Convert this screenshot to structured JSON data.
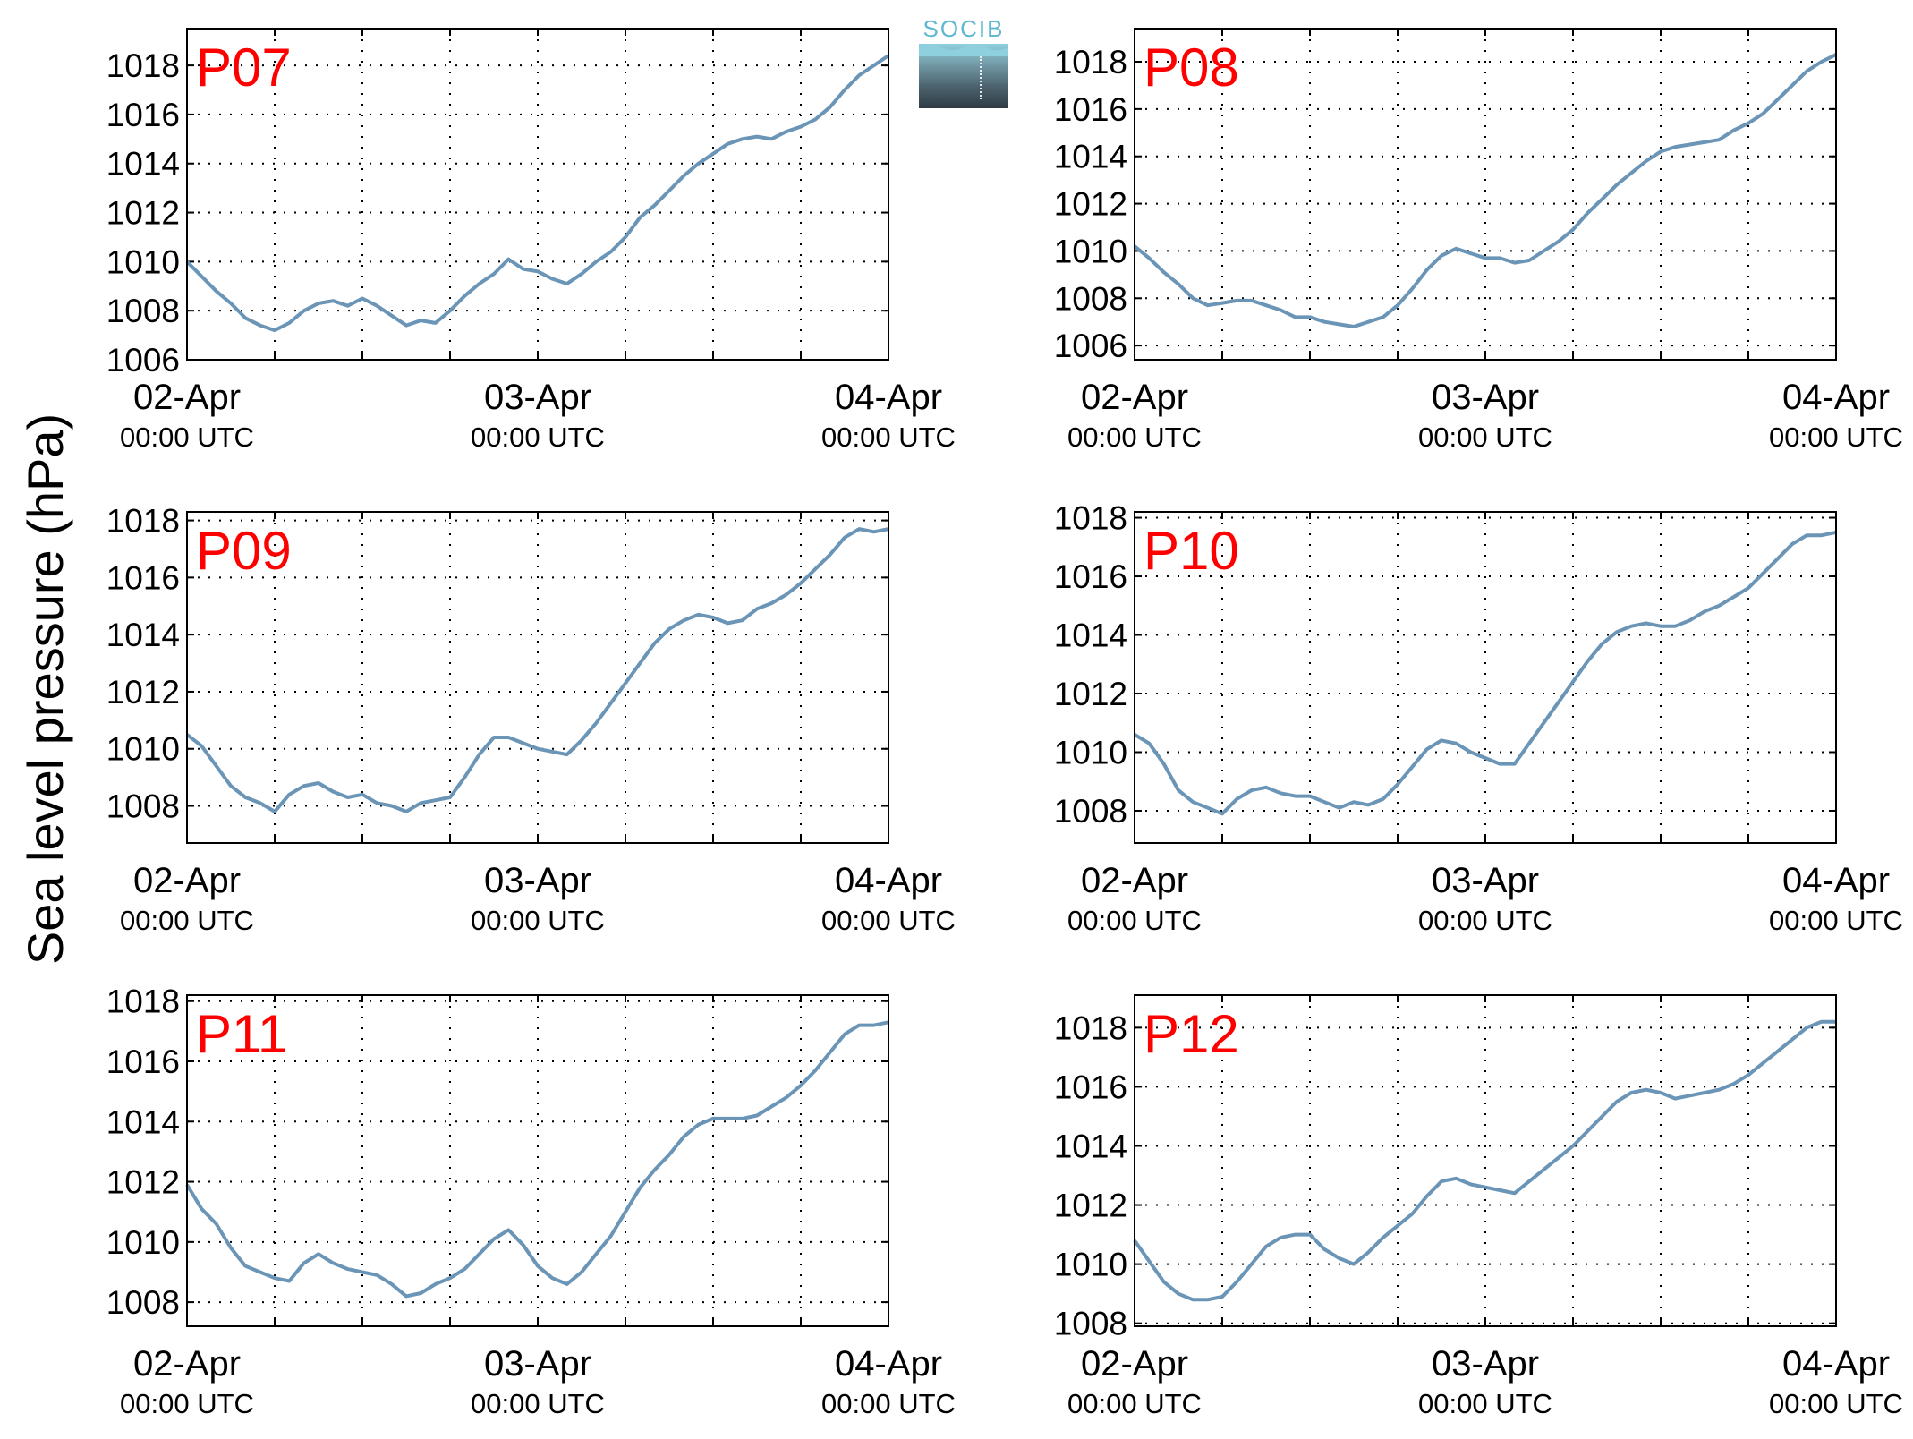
{
  "figure": {
    "ylabel": "Sea level pressure (hPa)",
    "logo_text": "SOCIB"
  },
  "style": {
    "line_color": "#6b95b7",
    "station_label_color": "#ff0000",
    "axis_color": "#000000",
    "grid": "dotted"
  },
  "chart_data": [
    {
      "type": "line",
      "title": "P07",
      "x_ticks": [
        "02-Apr",
        "03-Apr",
        "04-Apr"
      ],
      "x_subticks": [
        "00:00 UTC",
        "00:00 UTC",
        "00:00 UTC"
      ],
      "x_range_hours": [
        0,
        48
      ],
      "ylim": [
        1006,
        1019.5
      ],
      "y_ticks": [
        1006,
        1008,
        1010,
        1012,
        1014,
        1016,
        1018
      ],
      "grid": true,
      "series": [
        {
          "x": [
            0,
            1,
            2,
            3,
            4,
            5,
            6,
            7,
            8,
            9,
            10,
            11,
            12,
            13,
            14,
            15,
            16,
            17,
            18,
            19,
            20,
            21,
            22,
            23,
            24,
            25,
            26,
            27,
            28,
            29,
            30,
            31,
            32,
            33,
            34,
            35,
            36,
            37,
            38,
            39,
            40,
            41,
            42,
            43,
            44,
            45,
            46,
            47,
            48
          ],
          "y": [
            1010.0,
            1009.4,
            1008.8,
            1008.3,
            1007.7,
            1007.4,
            1007.2,
            1007.5,
            1008.0,
            1008.3,
            1008.4,
            1008.2,
            1008.5,
            1008.2,
            1007.8,
            1007.4,
            1007.6,
            1007.5,
            1008.0,
            1008.6,
            1009.1,
            1009.5,
            1010.1,
            1009.7,
            1009.6,
            1009.3,
            1009.1,
            1009.5,
            1010.0,
            1010.4,
            1011.0,
            1011.8,
            1012.3,
            1012.9,
            1013.5,
            1014.0,
            1014.4,
            1014.8,
            1015.0,
            1015.1,
            1015.0,
            1015.3,
            1015.5,
            1015.8,
            1016.3,
            1017.0,
            1017.6,
            1018.0,
            1018.4
          ]
        }
      ]
    },
    {
      "type": "line",
      "title": "P08",
      "x_ticks": [
        "02-Apr",
        "03-Apr",
        "04-Apr"
      ],
      "x_subticks": [
        "00:00 UTC",
        "00:00 UTC",
        "00:00 UTC"
      ],
      "x_range_hours": [
        0,
        48
      ],
      "ylim": [
        1005.4,
        1019.4
      ],
      "y_ticks": [
        1006,
        1008,
        1010,
        1012,
        1014,
        1016,
        1018
      ],
      "grid": true,
      "series": [
        {
          "x": [
            0,
            1,
            2,
            3,
            4,
            5,
            6,
            7,
            8,
            9,
            10,
            11,
            12,
            13,
            14,
            15,
            16,
            17,
            18,
            19,
            20,
            21,
            22,
            23,
            24,
            25,
            26,
            27,
            28,
            29,
            30,
            31,
            32,
            33,
            34,
            35,
            36,
            37,
            38,
            39,
            40,
            41,
            42,
            43,
            44,
            45,
            46,
            47,
            48
          ],
          "y": [
            1010.2,
            1009.7,
            1009.1,
            1008.6,
            1008.0,
            1007.7,
            1007.8,
            1007.9,
            1007.9,
            1007.7,
            1007.5,
            1007.2,
            1007.2,
            1007.0,
            1006.9,
            1006.8,
            1007.0,
            1007.2,
            1007.7,
            1008.4,
            1009.2,
            1009.8,
            1010.1,
            1009.9,
            1009.7,
            1009.7,
            1009.5,
            1009.6,
            1010.0,
            1010.4,
            1010.9,
            1011.6,
            1012.2,
            1012.8,
            1013.3,
            1013.8,
            1014.2,
            1014.4,
            1014.5,
            1014.6,
            1014.7,
            1015.1,
            1015.4,
            1015.8,
            1016.4,
            1017.0,
            1017.6,
            1018.0,
            1018.3
          ]
        }
      ]
    },
    {
      "type": "line",
      "title": "P09",
      "x_ticks": [
        "02-Apr",
        "03-Apr",
        "04-Apr"
      ],
      "x_subticks": [
        "00:00 UTC",
        "00:00 UTC",
        "00:00 UTC"
      ],
      "x_range_hours": [
        0,
        48
      ],
      "ylim": [
        1006.7,
        1018.3
      ],
      "y_ticks": [
        1008,
        1010,
        1012,
        1014,
        1016,
        1018
      ],
      "grid": true,
      "series": [
        {
          "x": [
            0,
            1,
            2,
            3,
            4,
            5,
            6,
            7,
            8,
            9,
            10,
            11,
            12,
            13,
            14,
            15,
            16,
            17,
            18,
            19,
            20,
            21,
            22,
            23,
            24,
            25,
            26,
            27,
            28,
            29,
            30,
            31,
            32,
            33,
            34,
            35,
            36,
            37,
            38,
            39,
            40,
            41,
            42,
            43,
            44,
            45,
            46,
            47,
            48
          ],
          "y": [
            1010.5,
            1010.1,
            1009.4,
            1008.7,
            1008.3,
            1008.1,
            1007.8,
            1008.4,
            1008.7,
            1008.8,
            1008.5,
            1008.3,
            1008.4,
            1008.1,
            1008.0,
            1007.8,
            1008.1,
            1008.2,
            1008.3,
            1009.0,
            1009.8,
            1010.4,
            1010.4,
            1010.2,
            1010.0,
            1009.9,
            1009.8,
            1010.3,
            1010.9,
            1011.6,
            1012.3,
            1013.0,
            1013.7,
            1014.2,
            1014.5,
            1014.7,
            1014.6,
            1014.4,
            1014.5,
            1014.9,
            1015.1,
            1015.4,
            1015.8,
            1016.3,
            1016.8,
            1017.4,
            1017.7,
            1017.6,
            1017.7
          ]
        }
      ]
    },
    {
      "type": "line",
      "title": "P10",
      "x_ticks": [
        "02-Apr",
        "03-Apr",
        "04-Apr"
      ],
      "x_subticks": [
        "00:00 UTC",
        "00:00 UTC",
        "00:00 UTC"
      ],
      "x_range_hours": [
        0,
        48
      ],
      "ylim": [
        1006.9,
        1018.2
      ],
      "y_ticks": [
        1008,
        1010,
        1012,
        1014,
        1016,
        1018
      ],
      "grid": true,
      "series": [
        {
          "x": [
            0,
            1,
            2,
            3,
            4,
            5,
            6,
            7,
            8,
            9,
            10,
            11,
            12,
            13,
            14,
            15,
            16,
            17,
            18,
            19,
            20,
            21,
            22,
            23,
            24,
            25,
            26,
            27,
            28,
            29,
            30,
            31,
            32,
            33,
            34,
            35,
            36,
            37,
            38,
            39,
            40,
            41,
            42,
            43,
            44,
            45,
            46,
            47,
            48
          ],
          "y": [
            1010.6,
            1010.3,
            1009.6,
            1008.7,
            1008.3,
            1008.1,
            1007.9,
            1008.4,
            1008.7,
            1008.8,
            1008.6,
            1008.5,
            1008.5,
            1008.3,
            1008.1,
            1008.3,
            1008.2,
            1008.4,
            1008.9,
            1009.5,
            1010.1,
            1010.4,
            1010.3,
            1010.0,
            1009.8,
            1009.6,
            1009.6,
            1010.3,
            1011.0,
            1011.7,
            1012.4,
            1013.1,
            1013.7,
            1014.1,
            1014.3,
            1014.4,
            1014.3,
            1014.3,
            1014.5,
            1014.8,
            1015.0,
            1015.3,
            1015.6,
            1016.1,
            1016.6,
            1017.1,
            1017.4,
            1017.4,
            1017.5
          ]
        }
      ]
    },
    {
      "type": "line",
      "title": "P11",
      "x_ticks": [
        "02-Apr",
        "03-Apr",
        "04-Apr"
      ],
      "x_subticks": [
        "00:00 UTC",
        "00:00 UTC",
        "00:00 UTC"
      ],
      "x_range_hours": [
        0,
        48
      ],
      "ylim": [
        1007.2,
        1018.2
      ],
      "y_ticks": [
        1008,
        1010,
        1012,
        1014,
        1016,
        1018
      ],
      "grid": true,
      "series": [
        {
          "x": [
            0,
            1,
            2,
            3,
            4,
            5,
            6,
            7,
            8,
            9,
            10,
            11,
            12,
            13,
            14,
            15,
            16,
            17,
            18,
            19,
            20,
            21,
            22,
            23,
            24,
            25,
            26,
            27,
            28,
            29,
            30,
            31,
            32,
            33,
            34,
            35,
            36,
            37,
            38,
            39,
            40,
            41,
            42,
            43,
            44,
            45,
            46,
            47,
            48
          ],
          "y": [
            1011.9,
            1011.1,
            1010.6,
            1009.8,
            1009.2,
            1009.0,
            1008.8,
            1008.7,
            1009.3,
            1009.6,
            1009.3,
            1009.1,
            1009.0,
            1008.9,
            1008.6,
            1008.2,
            1008.3,
            1008.6,
            1008.8,
            1009.1,
            1009.6,
            1010.1,
            1010.4,
            1009.9,
            1009.2,
            1008.8,
            1008.6,
            1009.0,
            1009.6,
            1010.2,
            1011.0,
            1011.8,
            1012.4,
            1012.9,
            1013.5,
            1013.9,
            1014.1,
            1014.1,
            1014.1,
            1014.2,
            1014.5,
            1014.8,
            1015.2,
            1015.7,
            1016.3,
            1016.9,
            1017.2,
            1017.2,
            1017.3
          ]
        }
      ]
    },
    {
      "type": "line",
      "title": "P12",
      "x_ticks": [
        "02-Apr",
        "03-Apr",
        "04-Apr"
      ],
      "x_subticks": [
        "00:00 UTC",
        "00:00 UTC",
        "00:00 UTC"
      ],
      "x_range_hours": [
        0,
        48
      ],
      "ylim": [
        1007.9,
        1019.1
      ],
      "y_ticks": [
        1008,
        1010,
        1012,
        1014,
        1016,
        1018
      ],
      "grid": true,
      "series": [
        {
          "x": [
            0,
            1,
            2,
            3,
            4,
            5,
            6,
            7,
            8,
            9,
            10,
            11,
            12,
            13,
            14,
            15,
            16,
            17,
            18,
            19,
            20,
            21,
            22,
            23,
            24,
            25,
            26,
            27,
            28,
            29,
            30,
            31,
            32,
            33,
            34,
            35,
            36,
            37,
            38,
            39,
            40,
            41,
            42,
            43,
            44,
            45,
            46,
            47,
            48
          ],
          "y": [
            1010.8,
            1010.1,
            1009.4,
            1009.0,
            1008.8,
            1008.8,
            1008.9,
            1009.4,
            1010.0,
            1010.6,
            1010.9,
            1011.0,
            1011.0,
            1010.5,
            1010.2,
            1010.0,
            1010.4,
            1010.9,
            1011.3,
            1011.7,
            1012.3,
            1012.8,
            1012.9,
            1012.7,
            1012.6,
            1012.5,
            1012.4,
            1012.8,
            1013.2,
            1013.6,
            1014.0,
            1014.5,
            1015.0,
            1015.5,
            1015.8,
            1015.9,
            1015.8,
            1015.6,
            1015.7,
            1015.8,
            1015.9,
            1016.1,
            1016.4,
            1016.8,
            1017.2,
            1017.6,
            1018.0,
            1018.2,
            1018.2
          ]
        }
      ]
    }
  ]
}
